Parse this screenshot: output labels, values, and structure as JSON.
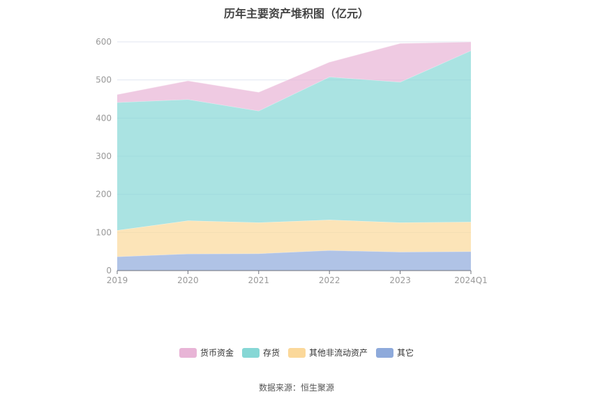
{
  "chart_data": {
    "type": "area",
    "stacked": true,
    "title": "历年主要资产堆积图（亿元）",
    "categories": [
      "2019",
      "2020",
      "2021",
      "2022",
      "2023",
      "2024Q1"
    ],
    "ylim": [
      0,
      600
    ],
    "yticks": [
      0,
      100,
      200,
      300,
      400,
      500,
      600
    ],
    "grid": true,
    "legend_position": "bottom",
    "series": [
      {
        "name": "其它",
        "color": "#8eaadb",
        "values": [
          36.6,
          44.0,
          44.6,
          53.0,
          49.0,
          50.0
        ]
      },
      {
        "name": "其他非流动资产",
        "color": "#fbd89a",
        "values": [
          69.0,
          87.0,
          81.4,
          80.0,
          77.0,
          77.6
        ]
      },
      {
        "name": "存货",
        "color": "#86d7d5",
        "values": [
          335.4,
          318.0,
          293.0,
          375.0,
          368.5,
          449.4
        ]
      },
      {
        "name": "货币资金",
        "color": "#e8b4d6",
        "values": [
          21.0,
          49.0,
          49.0,
          39.0,
          101.5,
          23.0
        ]
      }
    ],
    "legend_order": [
      3,
      2,
      1,
      0
    ]
  },
  "source": "数据来源：恒生聚源"
}
